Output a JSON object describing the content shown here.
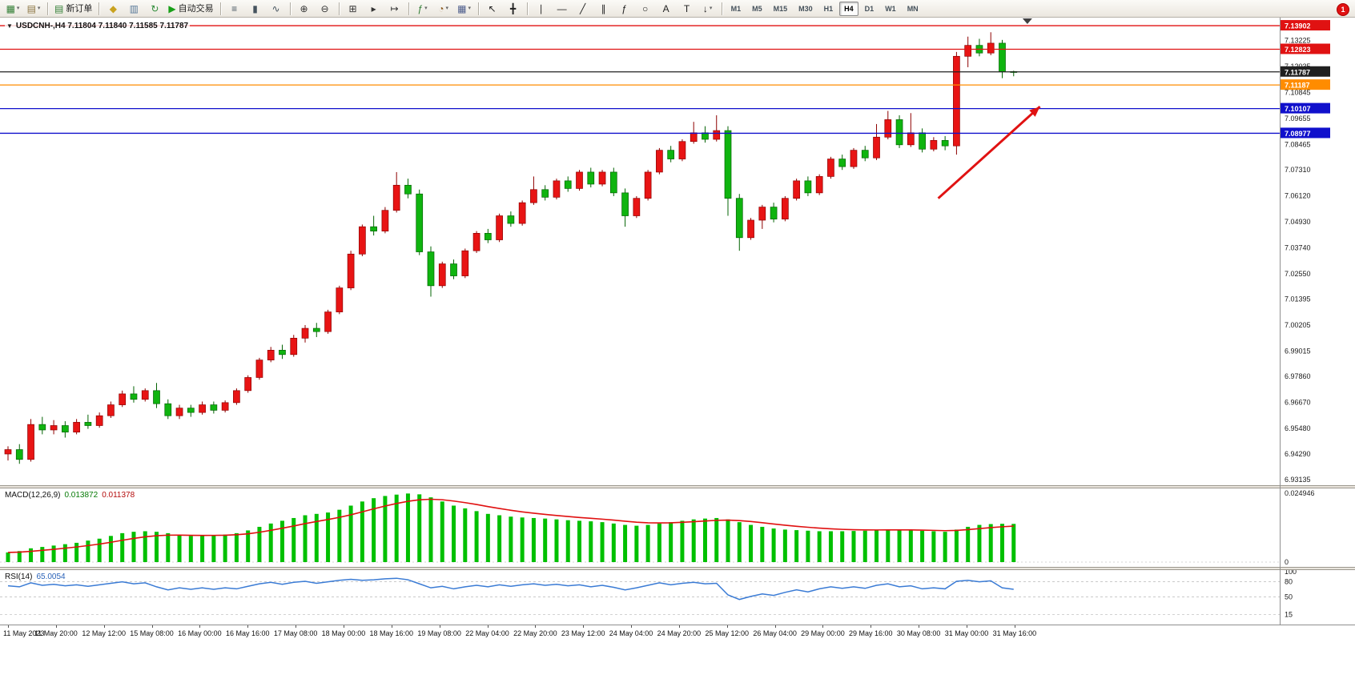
{
  "window": {
    "badge_count": "1"
  },
  "toolbar": {
    "timeframes": [
      "M1",
      "M5",
      "M15",
      "M30",
      "H1",
      "H4",
      "D1",
      "W1",
      "MN"
    ],
    "active_timeframe": "H4",
    "groups": [
      {
        "items": [
          {
            "id": "new-chart",
            "glyph": "▦",
            "color": "#2f7d32",
            "dropdown": true
          },
          {
            "id": "profiles",
            "glyph": "▤",
            "color": "#8a7440",
            "dropdown": true
          }
        ]
      },
      {
        "items": [
          {
            "id": "new-order",
            "glyph": "▤",
            "color": "#2f7d32",
            "label": "新订单"
          }
        ]
      },
      {
        "items": [
          {
            "id": "market-watch",
            "glyph": "◆",
            "color": "#c9a21f"
          },
          {
            "id": "data-window",
            "glyph": "▥",
            "color": "#5a7a9a"
          },
          {
            "id": "refresh",
            "glyph": "↻",
            "color": "#2f8d3a"
          },
          {
            "id": "autotrade",
            "glyph": "▶",
            "color": "#18a018",
            "label": "自动交易"
          }
        ]
      },
      {
        "items": [
          {
            "id": "bar-chart",
            "glyph": "≡",
            "color": "#45535e"
          },
          {
            "id": "candlestick",
            "glyph": "▮",
            "color": "#45535e"
          },
          {
            "id": "line-chart",
            "glyph": "∿",
            "color": "#45535e"
          }
        ]
      },
      {
        "items": [
          {
            "id": "zoom-in",
            "glyph": "⊕",
            "color": "#333333"
          },
          {
            "id": "zoom-out",
            "glyph": "⊖",
            "color": "#333333"
          }
        ]
      },
      {
        "items": [
          {
            "id": "tile-windows",
            "glyph": "⊞",
            "color": "#333333"
          },
          {
            "id": "auto-scroll",
            "glyph": "▸",
            "color": "#333333"
          },
          {
            "id": "chart-shift",
            "glyph": "↦",
            "color": "#333333"
          }
        ]
      },
      {
        "items": [
          {
            "id": "indicators",
            "glyph": "ƒ",
            "color": "#2f7d32",
            "dropdown": true
          },
          {
            "id": "periods",
            "glyph": "◔",
            "color": "#8a5a20",
            "dropdown": true
          },
          {
            "id": "templates",
            "glyph": "▦",
            "color": "#4a5a8a",
            "dropdown": true
          }
        ]
      },
      {
        "items": [
          {
            "id": "cursor",
            "glyph": "↖",
            "color": "#222222"
          },
          {
            "id": "crosshair",
            "glyph": "╋",
            "color": "#222222"
          }
        ]
      },
      {
        "items": [
          {
            "id": "vertical-line",
            "glyph": "∣",
            "color": "#222222"
          },
          {
            "id": "horizontal-line",
            "glyph": "―",
            "color": "#222222"
          },
          {
            "id": "trendline",
            "glyph": "╱",
            "color": "#222222"
          },
          {
            "id": "channel",
            "glyph": "∥",
            "color": "#222222"
          },
          {
            "id": "fibonacci",
            "glyph": "ƒ",
            "color": "#222222"
          },
          {
            "id": "shapes",
            "glyph": "○",
            "color": "#222222"
          },
          {
            "id": "text",
            "glyph": "A",
            "color": "#222222"
          },
          {
            "id": "label",
            "glyph": "T",
            "color": "#222222"
          },
          {
            "id": "arrows",
            "glyph": "↓",
            "color": "#222222",
            "dropdown": true
          }
        ]
      },
      {
        "items": "timeframes"
      }
    ]
  },
  "chart": {
    "title": "USDCNH-,H4 7.11804 7.11840 7.11585 7.11787",
    "symbol": "USDCNH-",
    "period": "H4",
    "ohlc": {
      "open": "7.11804",
      "high": "7.11840",
      "low": "7.11585",
      "close": "7.11787"
    }
  },
  "chart_data": {
    "type": "candlestick",
    "symbol": "USDCNH-",
    "timeframe": "H4",
    "colors": {
      "up": "#e81414",
      "up_dark": "#8e0000",
      "down": "#0fb40f",
      "down_dark": "#046404"
    },
    "price_axis_labels": [
      "7.13225",
      "7.12035",
      "7.10845",
      "7.09655",
      "7.08465",
      "7.07310",
      "7.06120",
      "7.04930",
      "7.03740",
      "7.02550",
      "7.01395",
      "7.00205",
      "6.99015",
      "6.97860",
      "6.96670",
      "6.95480",
      "6.94290",
      "6.93135"
    ],
    "x_labels": [
      "11 May 2023",
      "11 May 20:00",
      "12 May 12:00",
      "15 May 08:00",
      "16 May 00:00",
      "16 May 16:00",
      "17 May 08:00",
      "18 May 00:00",
      "18 May 16:00",
      "19 May 08:00",
      "22 May 04:00",
      "22 May 20:00",
      "23 May 12:00",
      "24 May 04:00",
      "24 May 20:00",
      "25 May 12:00",
      "26 May 04:00",
      "29 May 00:00",
      "29 May 16:00",
      "30 May 08:00",
      "31 May 00:00",
      "31 May 16:00"
    ],
    "levels": [
      {
        "price": "7.13902",
        "color": "#e01212",
        "style": "solid",
        "name": "resistance-line-1"
      },
      {
        "price": "7.12823",
        "color": "#e01212",
        "style": "solid",
        "name": "resistance-line-2"
      },
      {
        "price": "7.11787",
        "color": "#202020",
        "style": "solid",
        "name": "current-price-line"
      },
      {
        "price": "7.11187",
        "color": "#ff8c00",
        "style": "solid",
        "name": "support-line-orange"
      },
      {
        "price": "7.10107",
        "color": "#1010cc",
        "style": "solid",
        "name": "support-line-blue-1"
      },
      {
        "price": "7.08977",
        "color": "#1010cc",
        "style": "solid",
        "name": "support-line-blue-2"
      }
    ],
    "annotations": [
      {
        "type": "arrow",
        "name": "trend-arrow",
        "color": "#e01212",
        "from_bar": 81.4,
        "from_price": 7.06,
        "to_bar": 90.3,
        "to_price": 7.102
      }
    ],
    "shift_marker_bar": 89.2,
    "candles": [
      [
        6.943,
        6.9465,
        6.94,
        6.945
      ],
      [
        6.945,
        6.9475,
        6.9385,
        6.9405
      ],
      [
        6.9405,
        6.959,
        6.9395,
        6.9565
      ],
      [
        6.9565,
        6.96,
        6.952,
        6.954
      ],
      [
        6.954,
        6.9585,
        6.952,
        6.956
      ],
      [
        6.956,
        6.958,
        6.9505,
        6.953
      ],
      [
        6.953,
        6.959,
        6.952,
        6.9575
      ],
      [
        6.9575,
        6.961,
        6.9545,
        6.956
      ],
      [
        6.956,
        6.962,
        6.955,
        6.9605
      ],
      [
        6.9605,
        6.967,
        6.9595,
        6.9655
      ],
      [
        6.9655,
        6.972,
        6.9645,
        6.9705
      ],
      [
        6.9705,
        6.974,
        6.9665,
        6.968
      ],
      [
        6.968,
        6.973,
        6.967,
        6.972
      ],
      [
        6.972,
        6.9755,
        6.964,
        6.966
      ],
      [
        6.966,
        6.968,
        6.959,
        6.9605
      ],
      [
        6.9605,
        6.9655,
        6.959,
        6.964
      ],
      [
        6.964,
        6.9655,
        6.96,
        6.962
      ],
      [
        6.962,
        6.967,
        6.961,
        6.9655
      ],
      [
        6.9655,
        6.967,
        6.9615,
        6.963
      ],
      [
        6.963,
        6.9675,
        6.962,
        6.9665
      ],
      [
        6.9665,
        6.973,
        6.9655,
        6.972
      ],
      [
        6.972,
        6.979,
        6.971,
        6.978
      ],
      [
        6.978,
        6.987,
        6.977,
        6.986
      ],
      [
        6.986,
        6.992,
        6.985,
        6.9905
      ],
      [
        6.9905,
        6.993,
        6.9865,
        6.9885
      ],
      [
        6.9885,
        6.9975,
        6.9875,
        6.996
      ],
      [
        6.996,
        7.002,
        6.994,
        7.0005
      ],
      [
        7.0005,
        7.003,
        6.9965,
        6.999
      ],
      [
        6.999,
        7.009,
        6.998,
        7.008
      ],
      [
        7.008,
        7.02,
        7.007,
        7.019
      ],
      [
        7.019,
        7.036,
        7.018,
        7.0345
      ],
      [
        7.0345,
        7.048,
        7.0335,
        7.047
      ],
      [
        7.047,
        7.052,
        7.043,
        7.045
      ],
      [
        7.045,
        7.056,
        7.044,
        7.0545
      ],
      [
        7.0545,
        7.072,
        7.0535,
        7.066
      ],
      [
        7.066,
        7.069,
        7.06,
        7.062
      ],
      [
        7.062,
        7.064,
        7.034,
        7.0355
      ],
      [
        7.0355,
        7.038,
        7.015,
        7.02
      ],
      [
        7.02,
        7.031,
        7.019,
        7.03
      ],
      [
        7.03,
        7.032,
        7.023,
        7.0245
      ],
      [
        7.0245,
        7.037,
        7.0235,
        7.036
      ],
      [
        7.036,
        7.045,
        7.035,
        7.044
      ],
      [
        7.044,
        7.046,
        7.0395,
        7.041
      ],
      [
        7.041,
        7.053,
        7.04,
        7.052
      ],
      [
        7.052,
        7.054,
        7.047,
        7.0485
      ],
      [
        7.0485,
        7.059,
        7.0475,
        7.058
      ],
      [
        7.058,
        7.07,
        7.057,
        7.064
      ],
      [
        7.064,
        7.066,
        7.059,
        7.0605
      ],
      [
        7.0605,
        7.069,
        7.0595,
        7.068
      ],
      [
        7.068,
        7.07,
        7.063,
        7.0645
      ],
      [
        7.0645,
        7.073,
        7.0635,
        7.072
      ],
      [
        7.072,
        7.074,
        7.065,
        7.0665
      ],
      [
        7.0665,
        7.073,
        7.0655,
        7.072
      ],
      [
        7.072,
        7.074,
        7.061,
        7.0625
      ],
      [
        7.0625,
        7.0645,
        7.047,
        7.052
      ],
      [
        7.052,
        7.061,
        7.051,
        7.06
      ],
      [
        7.06,
        7.073,
        7.059,
        7.072
      ],
      [
        7.072,
        7.083,
        7.071,
        7.082
      ],
      [
        7.082,
        7.084,
        7.0765,
        7.078
      ],
      [
        7.078,
        7.087,
        7.077,
        7.086
      ],
      [
        7.086,
        7.095,
        7.085,
        7.09
      ],
      [
        7.09,
        7.093,
        7.0855,
        7.087
      ],
      [
        7.087,
        7.098,
        7.086,
        7.091
      ],
      [
        7.091,
        7.093,
        7.052,
        7.06
      ],
      [
        7.06,
        7.062,
        7.036,
        7.042
      ],
      [
        7.042,
        7.051,
        7.041,
        7.05
      ],
      [
        7.05,
        7.057,
        7.046,
        7.056
      ],
      [
        7.056,
        7.058,
        7.049,
        7.0505
      ],
      [
        7.0505,
        7.061,
        7.0495,
        7.06
      ],
      [
        7.06,
        7.069,
        7.059,
        7.068
      ],
      [
        7.068,
        7.07,
        7.061,
        7.0625
      ],
      [
        7.0625,
        7.071,
        7.0615,
        7.07
      ],
      [
        7.07,
        7.079,
        7.069,
        7.078
      ],
      [
        7.078,
        7.08,
        7.073,
        7.0745
      ],
      [
        7.0745,
        7.083,
        7.0735,
        7.082
      ],
      [
        7.082,
        7.084,
        7.077,
        7.0785
      ],
      [
        7.0785,
        7.094,
        7.0775,
        7.088
      ],
      [
        7.088,
        7.1,
        7.087,
        7.096
      ],
      [
        7.096,
        7.098,
        7.083,
        7.0845
      ],
      [
        7.0845,
        7.099,
        7.0835,
        7.09
      ],
      [
        7.09,
        7.092,
        7.081,
        7.0825
      ],
      [
        7.0825,
        7.088,
        7.0815,
        7.0865
      ],
      [
        7.0865,
        7.0885,
        7.082,
        7.084
      ],
      [
        7.084,
        7.127,
        7.08,
        7.125
      ],
      [
        7.125,
        7.134,
        7.12,
        7.13
      ],
      [
        7.13,
        7.133,
        7.125,
        7.1265
      ],
      [
        7.1265,
        7.136,
        7.1255,
        7.131
      ],
      [
        7.131,
        7.1325,
        7.115,
        7.118
      ],
      [
        7.11804,
        7.1184,
        7.11585,
        7.11787
      ]
    ],
    "indicators": {
      "macd": {
        "label": "MACD(12,26,9)",
        "display_main": "0.013872",
        "display_signal": "0.011378",
        "histogram_color": "#00c000",
        "signal_color": "#e01010",
        "axis_labels": [
          "0.024946",
          "0"
        ],
        "values": [
          0.0035,
          0.004,
          0.005,
          0.0055,
          0.006,
          0.0065,
          0.007,
          0.0078,
          0.0085,
          0.0095,
          0.0105,
          0.011,
          0.0112,
          0.011,
          0.0105,
          0.0098,
          0.0095,
          0.0095,
          0.0098,
          0.01,
          0.0105,
          0.0115,
          0.0128,
          0.014,
          0.015,
          0.016,
          0.017,
          0.0175,
          0.018,
          0.019,
          0.0205,
          0.022,
          0.0232,
          0.024,
          0.0245,
          0.0249,
          0.0246,
          0.0235,
          0.022,
          0.0205,
          0.0195,
          0.0185,
          0.0175,
          0.017,
          0.0165,
          0.0162,
          0.016,
          0.0158,
          0.0155,
          0.0152,
          0.015,
          0.0148,
          0.0145,
          0.014,
          0.0135,
          0.0132,
          0.0135,
          0.014,
          0.0145,
          0.015,
          0.0155,
          0.0158,
          0.016,
          0.0155,
          0.0145,
          0.0135,
          0.0128,
          0.0122,
          0.0118,
          0.0116,
          0.0114,
          0.0112,
          0.0112,
          0.0112,
          0.0113,
          0.0114,
          0.0116,
          0.0118,
          0.0117,
          0.0116,
          0.0114,
          0.0112,
          0.011,
          0.0118,
          0.0128,
          0.0135,
          0.0138,
          0.0139,
          0.013872
        ]
      },
      "rsi": {
        "label": "RSI(14)",
        "display_value": "65.0054",
        "color": "#3a7bd5",
        "axis_labels": [
          "100",
          "80",
          "50",
          "15"
        ],
        "levels": [
          80,
          50,
          15
        ],
        "range": [
          0,
          100
        ],
        "values": [
          72,
          70,
          78,
          73,
          75,
          72,
          74,
          71,
          74,
          77,
          80,
          76,
          78,
          70,
          64,
          68,
          65,
          68,
          65,
          68,
          66,
          71,
          76,
          79,
          75,
          79,
          81,
          77,
          80,
          83,
          85,
          83,
          84,
          86,
          87,
          84,
          76,
          68,
          71,
          66,
          70,
          73,
          70,
          74,
          71,
          74,
          76,
          73,
          75,
          72,
          74,
          70,
          73,
          69,
          64,
          68,
          73,
          78,
          74,
          77,
          79,
          76,
          77,
          54,
          45,
          51,
          56,
          53,
          59,
          64,
          60,
          66,
          70,
          67,
          70,
          67,
          73,
          76,
          70,
          72,
          66,
          68,
          66,
          81,
          83,
          80,
          82,
          68,
          65.0054
        ]
      }
    }
  }
}
